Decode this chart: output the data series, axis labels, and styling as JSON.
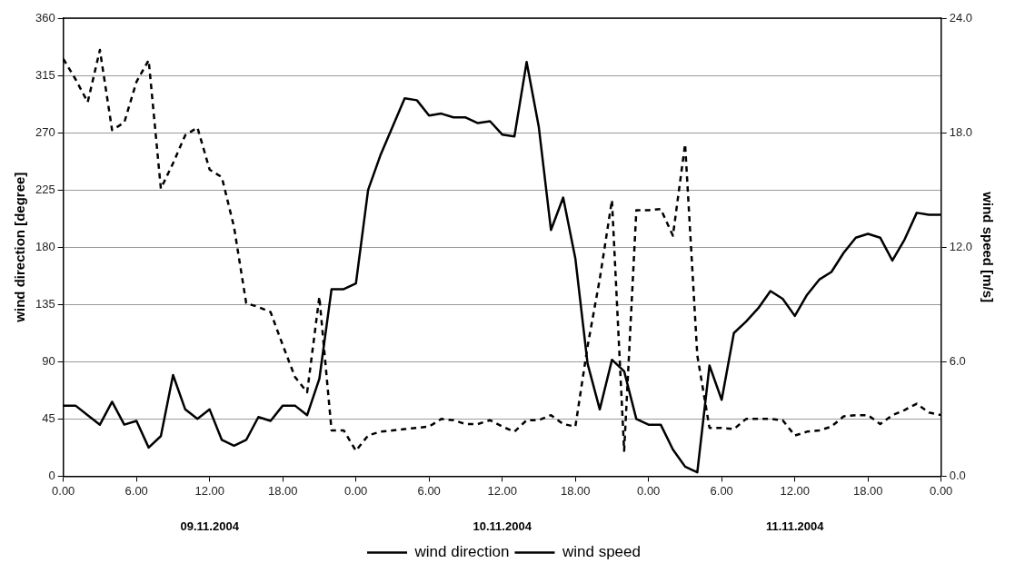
{
  "chart_data": {
    "type": "line",
    "ylabel": "wind direction [degree]",
    "y2label": "wind speed [m/s]",
    "x": [
      "2004-11-09T00:00",
      "2004-11-09T01:00",
      "2004-11-09T02:00",
      "2004-11-09T03:00",
      "2004-11-09T04:00",
      "2004-11-09T05:00",
      "2004-11-09T06:00",
      "2004-11-09T07:00",
      "2004-11-09T08:00",
      "2004-11-09T09:00",
      "2004-11-09T10:00",
      "2004-11-09T11:00",
      "2004-11-09T12:00",
      "2004-11-09T13:00",
      "2004-11-09T14:00",
      "2004-11-09T15:00",
      "2004-11-09T16:00",
      "2004-11-09T17:00",
      "2004-11-09T18:00",
      "2004-11-09T19:00",
      "2004-11-09T20:00",
      "2004-11-09T21:00",
      "2004-11-09T22:00",
      "2004-11-09T23:00",
      "2004-11-10T00:00",
      "2004-11-10T01:00",
      "2004-11-10T02:00",
      "2004-11-10T03:00",
      "2004-11-10T04:00",
      "2004-11-10T05:00",
      "2004-11-10T06:00",
      "2004-11-10T07:00",
      "2004-11-10T08:00",
      "2004-11-10T09:00",
      "2004-11-10T10:00",
      "2004-11-10T11:00",
      "2004-11-10T12:00",
      "2004-11-10T13:00",
      "2004-11-10T14:00",
      "2004-11-10T15:00",
      "2004-11-10T16:00",
      "2004-11-10T17:00",
      "2004-11-10T18:00",
      "2004-11-10T19:00",
      "2004-11-10T20:00",
      "2004-11-10T21:00",
      "2004-11-10T22:00",
      "2004-11-10T23:00",
      "2004-11-11T00:00",
      "2004-11-11T01:00",
      "2004-11-11T02:00",
      "2004-11-11T03:00",
      "2004-11-11T04:00",
      "2004-11-11T05:00",
      "2004-11-11T06:00",
      "2004-11-11T07:00",
      "2004-11-11T08:00",
      "2004-11-11T09:00",
      "2004-11-11T10:00",
      "2004-11-11T11:00",
      "2004-11-11T12:00",
      "2004-11-11T13:00",
      "2004-11-11T14:00",
      "2004-11-11T15:00",
      "2004-11-11T16:00",
      "2004-11-11T17:00",
      "2004-11-11T18:00",
      "2004-11-11T19:00",
      "2004-11-11T20:00",
      "2004-11-11T21:00",
      "2004-11-11T22:00",
      "2004-11-11T23:00",
      "2004-11-12T00:00"
    ],
    "xlim": [
      "2004-11-09T00:00",
      "2004-11-12T00:00"
    ],
    "xticks": [
      {
        "value": "2004-11-09T00:00",
        "label": "0.00"
      },
      {
        "value": "2004-11-09T06:00",
        "label": "6.00"
      },
      {
        "value": "2004-11-09T12:00",
        "label": "12.00"
      },
      {
        "value": "2004-11-09T18:00",
        "label": "18.00"
      },
      {
        "value": "2004-11-10T00:00",
        "label": "0.00"
      },
      {
        "value": "2004-11-10T06:00",
        "label": "6.00"
      },
      {
        "value": "2004-11-10T12:00",
        "label": "12.00"
      },
      {
        "value": "2004-11-10T18:00",
        "label": "18.00"
      },
      {
        "value": "2004-11-11T00:00",
        "label": "0.00"
      },
      {
        "value": "2004-11-11T06:00",
        "label": "6.00"
      },
      {
        "value": "2004-11-11T12:00",
        "label": "12.00"
      },
      {
        "value": "2004-11-11T18:00",
        "label": "18.00"
      },
      {
        "value": "2004-11-12T00:00",
        "label": "0.00"
      }
    ],
    "ylim": [
      0,
      360
    ],
    "yticks": [
      0,
      45,
      90,
      135,
      180,
      225,
      270,
      315,
      360
    ],
    "y2lim": [
      0,
      24
    ],
    "y2ticks": [
      {
        "value": 0,
        "label": "0.0"
      },
      {
        "value": 6,
        "label": "6.0"
      },
      {
        "value": 12,
        "label": "12.0"
      },
      {
        "value": 18,
        "label": "18.0"
      },
      {
        "value": 24,
        "label": "24.0"
      }
    ],
    "grid": "y",
    "legend": "bottom",
    "marker": "none",
    "annotations": [
      "09.11.2004",
      "10.11.2004",
      "11.11.2004"
    ],
    "series": [
      {
        "name": "wind direction",
        "color": "#000000",
        "line_style": "dashed",
        "values": [
          328,
          312,
          294,
          335,
          272,
          278,
          310,
          327,
          226,
          246,
          268,
          274,
          241,
          235,
          196,
          136,
          133,
          129,
          103,
          78,
          66,
          141,
          36,
          36,
          20,
          32,
          35,
          36,
          37,
          38,
          39,
          45,
          44,
          41,
          41,
          44,
          39,
          35,
          44,
          44,
          48,
          41,
          39,
          102,
          155,
          217,
          20,
          209,
          209,
          210,
          189,
          261,
          95,
          38,
          38,
          37,
          45,
          45,
          45,
          44,
          32,
          35,
          36,
          39,
          47,
          48,
          48,
          41,
          48,
          52,
          57,
          50,
          48
        ]
      },
      {
        "name": "wind speed",
        "color": "#000000",
        "line_style": "solid",
        "axis": "y2",
        "values": [
          3.7,
          3.7,
          3.2,
          2.7,
          3.9,
          2.7,
          2.9,
          1.5,
          2.1,
          5.3,
          3.5,
          3.0,
          3.5,
          1.9,
          1.6,
          1.9,
          3.1,
          2.9,
          3.7,
          3.7,
          3.2,
          5.1,
          9.8,
          9.8,
          10.1,
          15.0,
          16.8,
          18.3,
          19.8,
          19.7,
          18.9,
          19.0,
          18.8,
          18.8,
          18.5,
          18.6,
          17.9,
          17.8,
          21.7,
          18.3,
          12.9,
          14.6,
          11.4,
          5.9,
          3.5,
          6.1,
          5.5,
          3.0,
          2.7,
          2.7,
          1.4,
          0.5,
          0.2,
          5.8,
          4.0,
          7.5,
          8.1,
          8.8,
          9.7,
          9.3,
          8.4,
          9.5,
          10.3,
          10.7,
          11.7,
          12.5,
          12.7,
          12.5,
          11.3,
          12.4,
          13.8,
          13.7,
          13.7
        ]
      }
    ]
  }
}
